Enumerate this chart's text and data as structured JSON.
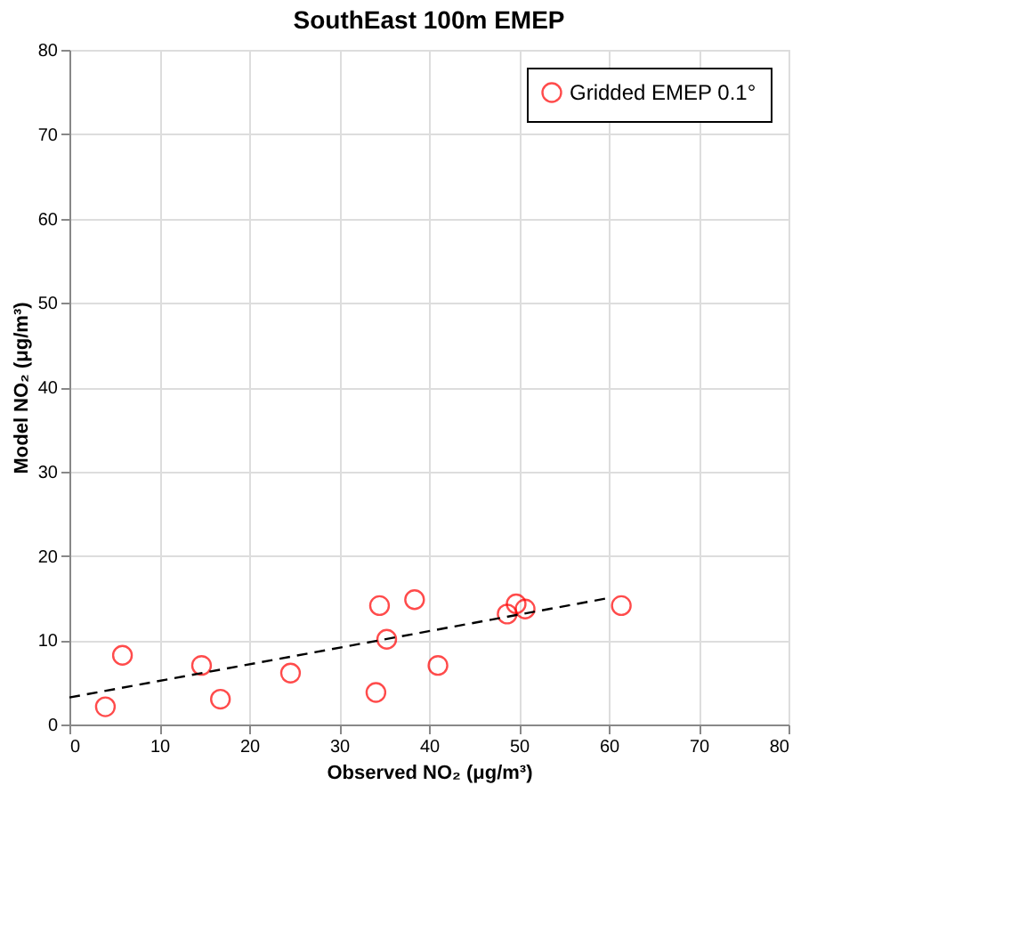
{
  "chart_data": {
    "type": "scatter",
    "title": "SouthEast 100m EMEP",
    "xlabel": "Observed NO₂ (μg/m³)",
    "ylabel": "Model NO₂ (μg/m³)",
    "xlim": [
      0,
      80
    ],
    "ylim": [
      0,
      80
    ],
    "xticks": [
      0,
      10,
      20,
      30,
      40,
      50,
      60,
      70,
      80
    ],
    "yticks": [
      0,
      10,
      20,
      30,
      40,
      50,
      60,
      70,
      80
    ],
    "grid": true,
    "legend": "top right",
    "marker": "circle",
    "series": [
      {
        "name": "Gridded EMEP 0.1°",
        "color": "#ff0000",
        "x": [
          4.0,
          5.9,
          14.7,
          16.8,
          24.6,
          34.1,
          34.5,
          35.3,
          38.4,
          41.0,
          48.7,
          49.7,
          50.7,
          61.4
        ],
        "values": [
          2.1,
          8.2,
          7.0,
          3.0,
          6.1,
          3.8,
          14.1,
          10.1,
          14.8,
          7.0,
          13.1,
          14.3,
          13.7,
          14.1
        ]
      },
      {
        "type": "line",
        "color": "#000000",
        "line_style": "dashed",
        "marker": "none",
        "x": [
          0,
          60
        ],
        "values": [
          3.2,
          15.0
        ]
      }
    ]
  }
}
